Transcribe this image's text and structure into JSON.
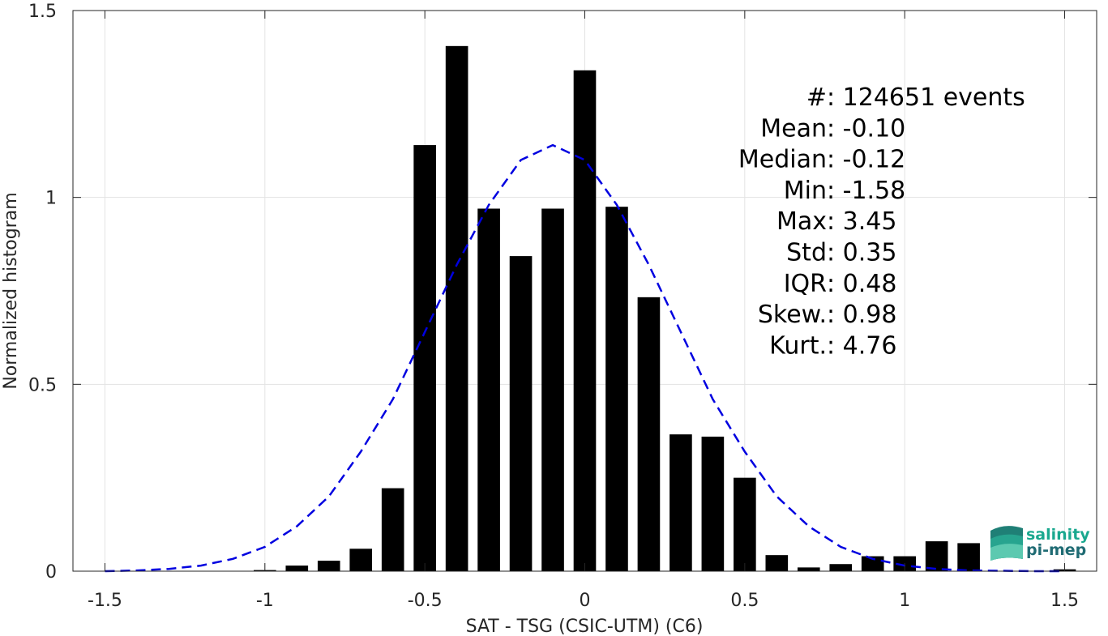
{
  "chart_data": {
    "type": "bar",
    "xlabel": "SAT - TSG (CSIC-UTM) (C6)",
    "ylabel": "Normalized histogram",
    "xlim": [
      -1.6,
      1.6
    ],
    "ylim": [
      0,
      1.5
    ],
    "xticks": [
      -1.5,
      -1,
      -0.5,
      0,
      0.5,
      1,
      1.5
    ],
    "xtick_labels": [
      "-1.5",
      "-1",
      "-0.5",
      "0",
      "0.5",
      "1",
      "1.5"
    ],
    "yticks": [
      0,
      0.5,
      1,
      1.5
    ],
    "ytick_labels": [
      "0",
      "0.5",
      "1",
      "1.5"
    ],
    "grid": true,
    "bin_width": 0.1,
    "bar_width": 0.07,
    "bins": {
      "centers": [
        -1.5,
        -1.4,
        -1.3,
        -1.2,
        -1.1,
        -1.0,
        -0.9,
        -0.8,
        -0.7,
        -0.6,
        -0.5,
        -0.4,
        -0.3,
        -0.2,
        -0.1,
        0.0,
        0.1,
        0.2,
        0.3,
        0.4,
        0.5,
        0.6,
        0.7,
        0.8,
        0.9,
        1.0,
        1.1,
        1.2,
        1.3,
        1.5
      ],
      "values": [
        0.0,
        0.0,
        0.0,
        0.0005,
        0.001,
        0.003,
        0.015,
        0.028,
        0.06,
        0.222,
        1.14,
        1.405,
        0.97,
        0.843,
        0.97,
        1.34,
        0.975,
        0.733,
        0.366,
        0.36,
        0.25,
        0.043,
        0.01,
        0.019,
        0.04,
        0.04,
        0.08,
        0.075,
        0.0,
        0.005
      ],
      "color": "#000000"
    },
    "fit_curve": {
      "style": "dashed",
      "color": "#0000e0",
      "x": [
        -1.5,
        -1.4,
        -1.3,
        -1.2,
        -1.1,
        -1.0,
        -0.9,
        -0.8,
        -0.7,
        -0.6,
        -0.5,
        -0.4,
        -0.3,
        -0.2,
        -0.1,
        0.0,
        0.1,
        0.2,
        0.3,
        0.4,
        0.5,
        0.6,
        0.7,
        0.8,
        0.9,
        1.0,
        1.1,
        1.2,
        1.3,
        1.4,
        1.5
      ],
      "y": [
        0.0,
        0.002,
        0.006,
        0.015,
        0.033,
        0.065,
        0.12,
        0.2,
        0.32,
        0.46,
        0.64,
        0.82,
        0.98,
        1.1,
        1.14,
        1.1,
        0.98,
        0.82,
        0.64,
        0.46,
        0.32,
        0.2,
        0.12,
        0.065,
        0.033,
        0.015,
        0.006,
        0.002,
        0.001,
        0.0,
        0.0
      ]
    },
    "annotations": [
      {
        "label": "#  ",
        "value": ": 124651 events"
      },
      {
        "label": "Mean ",
        "value": ": -0.10"
      },
      {
        "label": "Median ",
        "value": ": -0.12"
      },
      {
        "label": "Min ",
        "value": ": -1.58"
      },
      {
        "label": "Max ",
        "value": ": 3.45"
      },
      {
        "label": "Std ",
        "value": ": 0.35"
      },
      {
        "label": "IQR ",
        "value": ": 0.48"
      },
      {
        "label": "Skew. ",
        "value": ": 0.98"
      },
      {
        "label": "Kurt. ",
        "value": ": 4.76"
      }
    ]
  },
  "logo": {
    "line1": "salinity",
    "line2": "pi-mep",
    "color1": "#1aa88f",
    "color2": "#1f6b73"
  }
}
